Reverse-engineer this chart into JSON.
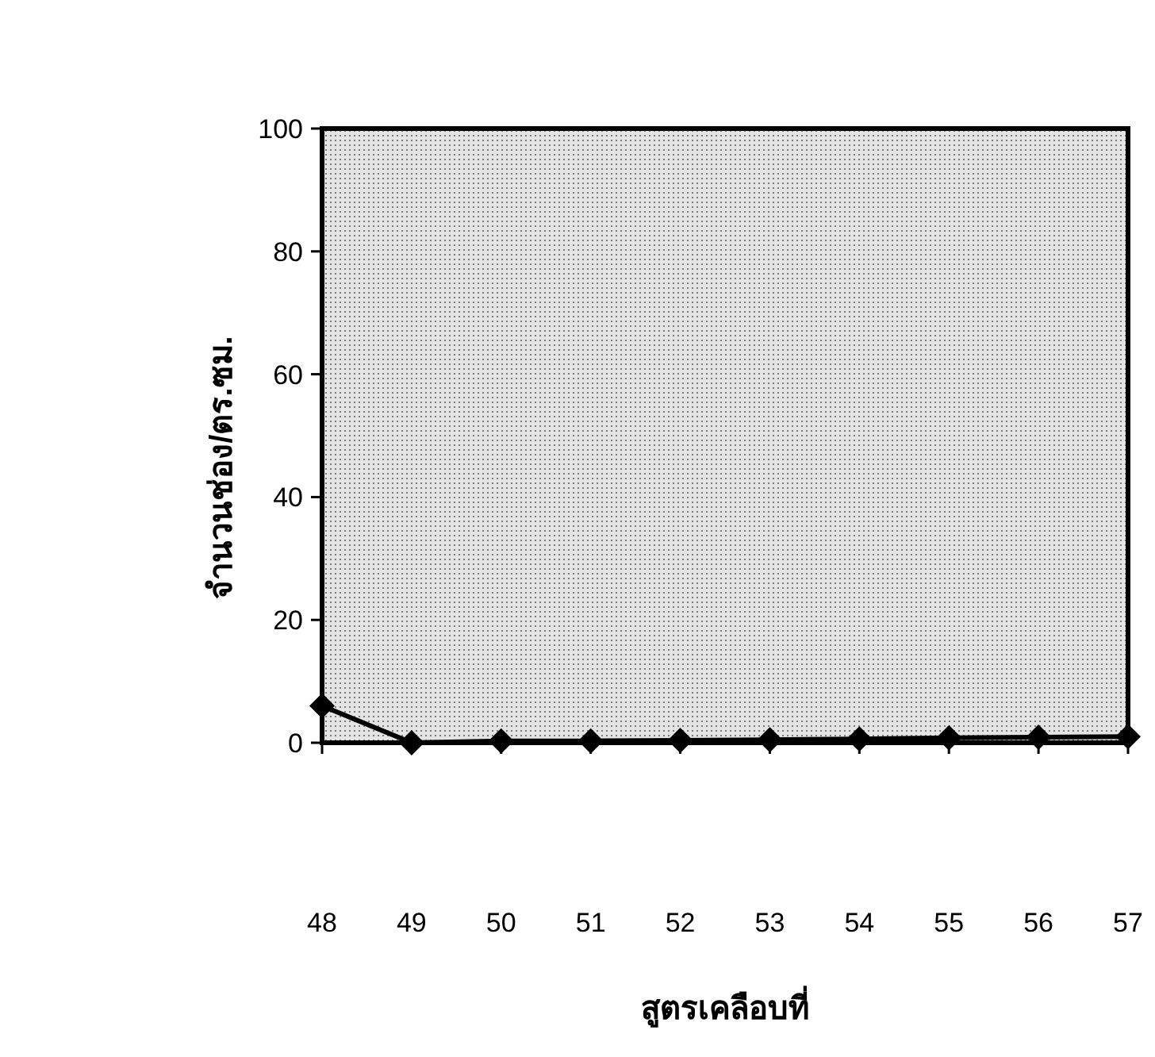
{
  "chart_data": {
    "type": "line",
    "xlabel": "สูตรเคลือบที่",
    "ylabel": "จำนวนช่อง/ตร.ซม.",
    "categories": [
      "48",
      "49",
      "50",
      "51",
      "52",
      "53",
      "54",
      "55",
      "56",
      "57"
    ],
    "values": [
      6,
      0,
      0.3,
      0.3,
      0.4,
      0.5,
      0.6,
      0.8,
      0.9,
      1
    ],
    "color": "#000000",
    "marker": "diamond",
    "line_style": "solid",
    "ylim": [
      0,
      100
    ],
    "yticks": [
      0,
      20,
      40,
      60,
      80,
      100
    ]
  }
}
